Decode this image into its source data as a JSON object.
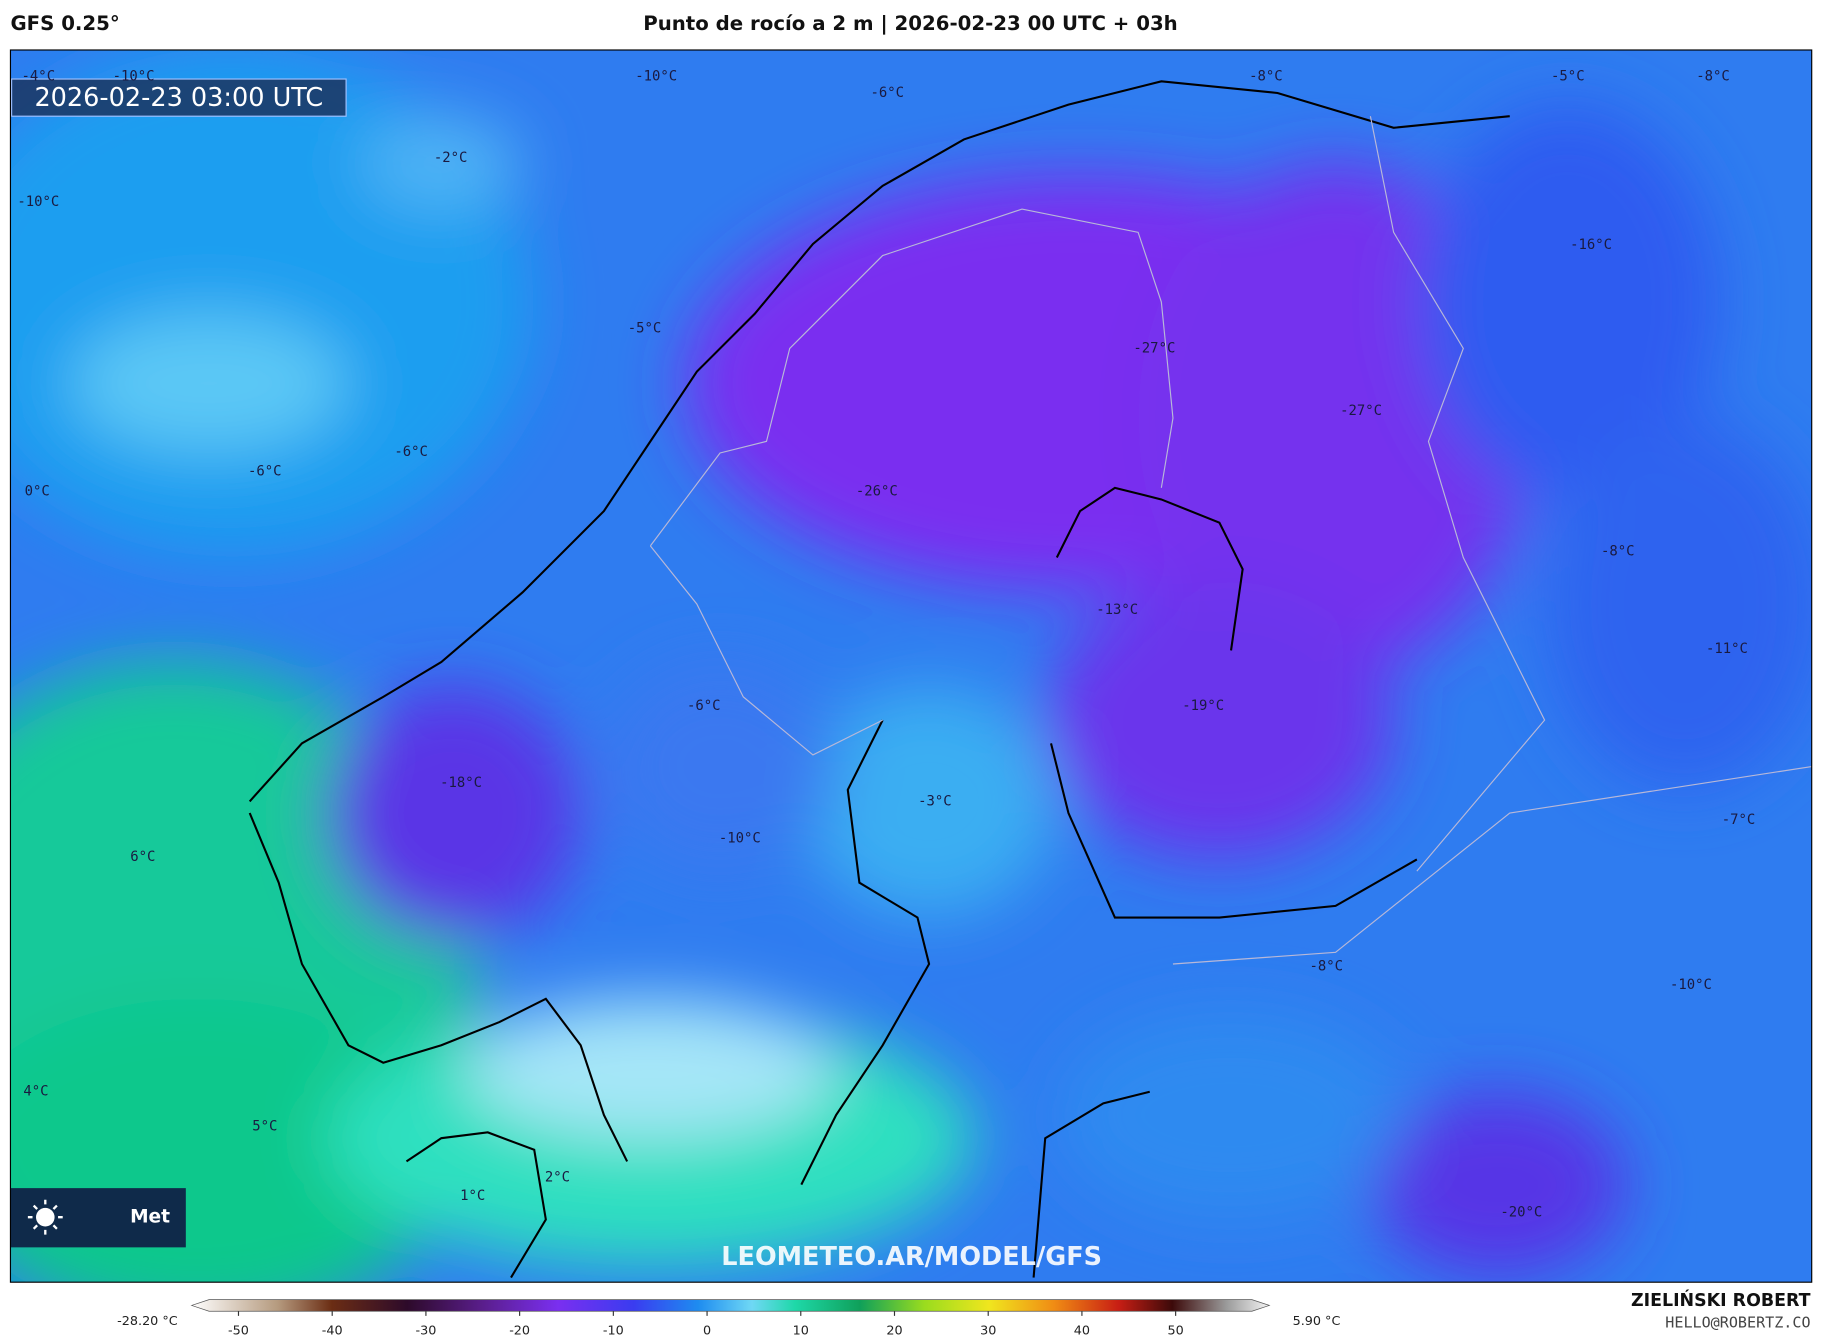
{
  "header": {
    "model": "GFS 0.25°",
    "title": "Punto de rocío a 2 m | 2026-02-23 00 UTC + 03h"
  },
  "map": {
    "timestamp": "2026-02-23 03:00 UTC",
    "watermark": "LEOMETEO.AR/MODEL/GFS",
    "logo_text": "Met",
    "contour_labels": [
      "-4°C",
      "-10°C",
      "-10°C",
      "-6°C",
      "-8°C",
      "-5°C",
      "-8°C",
      "-2°C",
      "-10°C",
      "-16°C",
      "-5°C",
      "-27°C",
      "-27°C",
      "-6°C",
      "-6°C",
      "0°C",
      "-26°C",
      "-8°C",
      "-13°C",
      "-11°C",
      "-6°C",
      "-19°C",
      "-18°C",
      "-3°C",
      "-7°C",
      "-10°C",
      "6°C",
      "-8°C",
      "-10°C",
      "4°C",
      "5°C",
      "1°C",
      "2°C",
      "-20°C"
    ]
  },
  "colorbar": {
    "min_label": "-28.20 °C",
    "max_label": "5.90 °C",
    "range": [
      -55,
      60
    ],
    "ticks": [
      -50,
      -40,
      -30,
      -20,
      -10,
      0,
      10,
      20,
      30,
      40,
      50
    ]
  },
  "footer": {
    "author": "ZIELIŃSKI ROBERT",
    "email": "HELLO@ROBERTZ.CO"
  }
}
